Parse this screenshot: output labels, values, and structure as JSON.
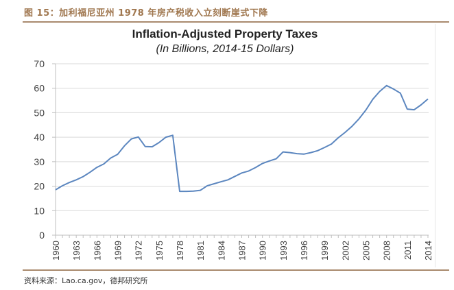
{
  "figure": {
    "caption": "图 15：加利福尼亚州 1978 年房产税收入立刻断崖式下降",
    "source": "资料来源：Lao.ca.gov，德邦研究所"
  },
  "chart_data": {
    "type": "line",
    "title": "Inflation-Adjusted Property Taxes",
    "subtitle": "(In Billions, 2014-15 Dollars)",
    "xlabel": "",
    "ylabel": "",
    "ylim": [
      0,
      70
    ],
    "xlim": [
      1960,
      2014
    ],
    "yticks": [
      0,
      10,
      20,
      30,
      40,
      50,
      60,
      70
    ],
    "xtick_labels": [
      "1960",
      "1963",
      "1966",
      "1969",
      "1972",
      "1975",
      "1978",
      "1981",
      "1984",
      "1987",
      "1990",
      "1993",
      "1996",
      "1999",
      "2002",
      "2005",
      "2008",
      "2011",
      "2014"
    ],
    "grid": "horizontal",
    "legend": "none",
    "line_color": "#5b86bf",
    "series": [
      {
        "name": "Inflation-Adjusted Property Taxes",
        "x": [
          1960,
          1961,
          1962,
          1963,
          1964,
          1965,
          1966,
          1967,
          1968,
          1969,
          1970,
          1971,
          1972,
          1973,
          1974,
          1975,
          1976,
          1977,
          1978,
          1979,
          1980,
          1981,
          1982,
          1983,
          1984,
          1985,
          1986,
          1987,
          1988,
          1989,
          1990,
          1991,
          1992,
          1993,
          1994,
          1995,
          1996,
          1997,
          1998,
          1999,
          2000,
          2001,
          2002,
          2003,
          2004,
          2005,
          2006,
          2007,
          2008,
          2009,
          2010,
          2011,
          2012,
          2013,
          2014
        ],
        "values": [
          18.5,
          20.2,
          21.5,
          22.6,
          23.9,
          25.7,
          27.7,
          29.1,
          31.5,
          33.0,
          36.5,
          39.3,
          40.1,
          36.2,
          36.1,
          37.8,
          40.0,
          40.8,
          17.9,
          17.9,
          18.0,
          18.3,
          20.2,
          21.0,
          21.8,
          22.6,
          24.0,
          25.4,
          26.2,
          27.6,
          29.3,
          30.3,
          31.2,
          34.0,
          33.7,
          33.3,
          33.1,
          33.7,
          34.5,
          35.8,
          37.2,
          39.8,
          42.0,
          44.5,
          47.5,
          51.1,
          55.5,
          58.7,
          61.1,
          59.7,
          58.0,
          51.5,
          51.2,
          53.2,
          55.6
        ]
      }
    ]
  }
}
